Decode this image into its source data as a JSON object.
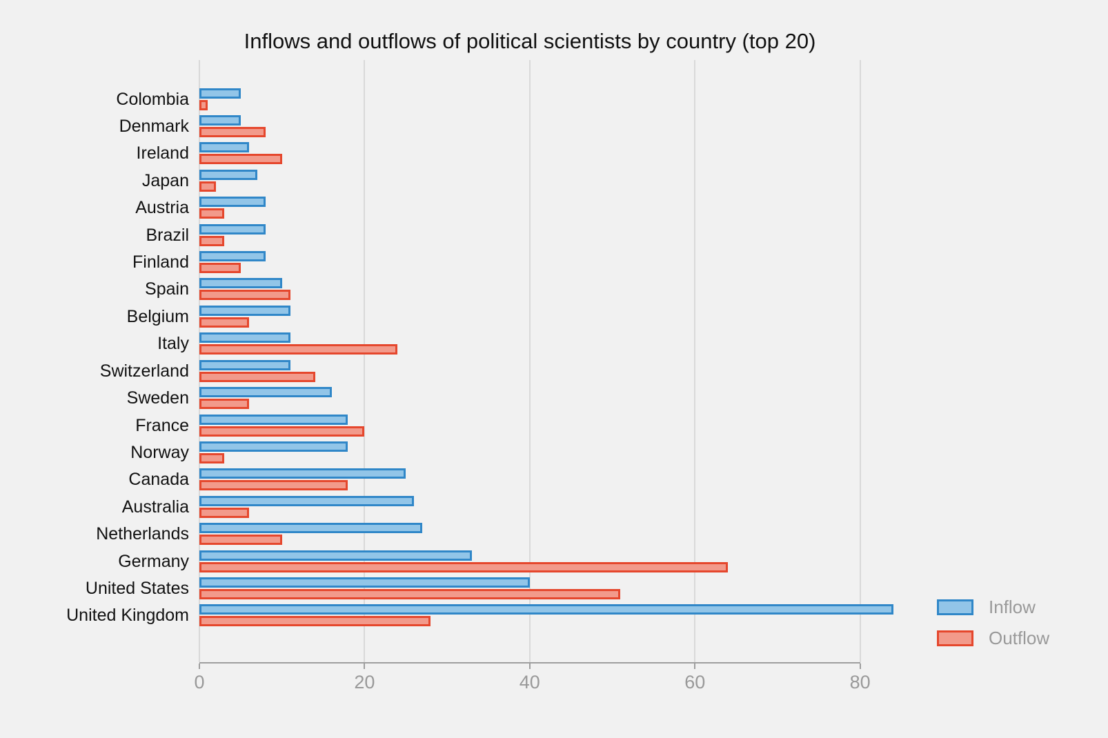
{
  "title": "Inflows and outflows of political scientists by country (top 20)",
  "colors": {
    "background": "#f1f1f1",
    "gridline": "#d9d9d9",
    "axis_line": "#9e9e9e",
    "tick_label_text": "#999999",
    "category_label_text": "#111111",
    "title_text": "#111111",
    "legend_text": "#999999",
    "inflow_fill": "#92c5e8",
    "inflow_border": "#3087c8",
    "outflow_fill": "#f29a8b",
    "outflow_border": "#e5472d"
  },
  "legend": {
    "items": [
      {
        "label": "Inflow",
        "series_key": "inflow"
      },
      {
        "label": "Outflow",
        "series_key": "outflow"
      }
    ]
  },
  "chart_data": {
    "type": "bar",
    "orientation": "horizontal",
    "title": "Inflows and outflows of political scientists by country (top 20)",
    "categories": [
      "Colombia",
      "Denmark",
      "Ireland",
      "Japan",
      "Austria",
      "Brazil",
      "Finland",
      "Spain",
      "Belgium",
      "Italy",
      "Switzerland",
      "Sweden",
      "France",
      "Norway",
      "Canada",
      "Australia",
      "Netherlands",
      "Germany",
      "United States",
      "United Kingdom"
    ],
    "series": [
      {
        "name": "Inflow",
        "values": [
          5,
          5,
          6,
          7,
          8,
          8,
          8,
          10,
          11,
          11,
          11,
          16,
          18,
          18,
          25,
          26,
          27,
          33,
          40,
          84
        ]
      },
      {
        "name": "Outflow",
        "values": [
          1,
          8,
          10,
          2,
          3,
          3,
          5,
          11,
          6,
          24,
          14,
          6,
          20,
          3,
          18,
          6,
          10,
          64,
          51,
          28
        ]
      }
    ],
    "xlabel": "",
    "ylabel": "",
    "x_ticks": [
      0,
      20,
      40,
      60,
      80
    ],
    "xlim": [
      0,
      87.8
    ],
    "grid": true,
    "legend_position": "bottom-right"
  }
}
